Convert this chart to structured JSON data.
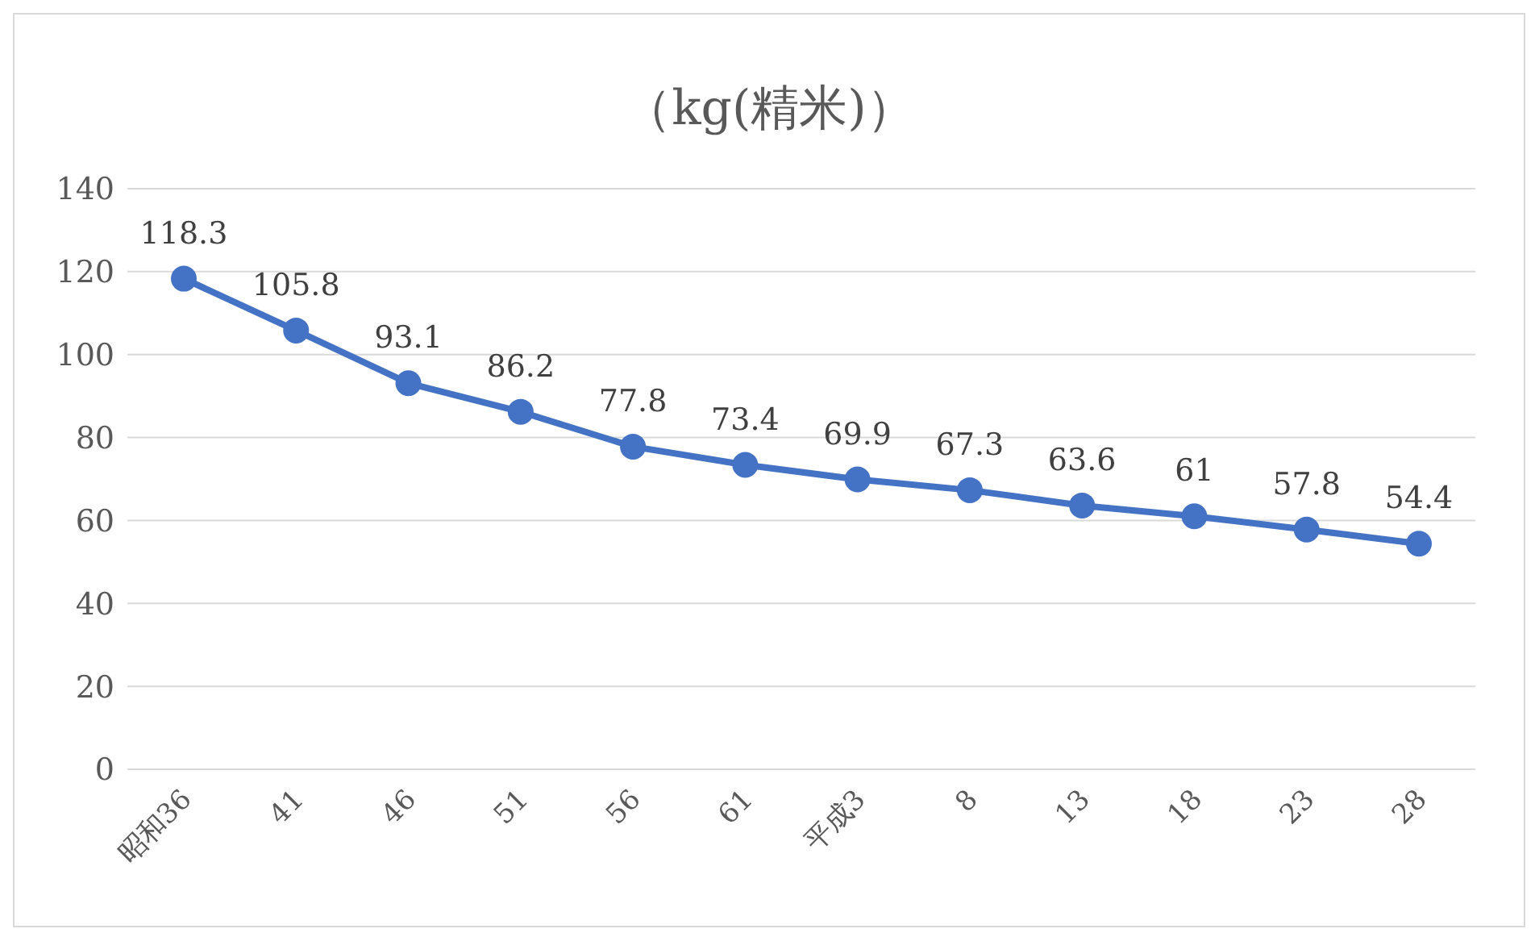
{
  "chart_data": {
    "type": "line",
    "title": "（kg(精米)）",
    "categories": [
      "昭和36",
      "41",
      "46",
      "51",
      "56",
      "61",
      "平成3",
      "8",
      "13",
      "18",
      "23",
      "28"
    ],
    "series": [
      {
        "color": "#4472c4",
        "values": [
          118.3,
          105.8,
          93.1,
          86.2,
          77.8,
          73.4,
          69.9,
          67.3,
          63.6,
          61,
          57.8,
          54.4
        ]
      }
    ],
    "ylim": [
      0,
      140
    ],
    "yticks": [
      0,
      20,
      40,
      60,
      80,
      100,
      120,
      140
    ],
    "grid": "y",
    "legend": false,
    "marker": "circle",
    "line_style": "solid",
    "data_labels": true
  }
}
